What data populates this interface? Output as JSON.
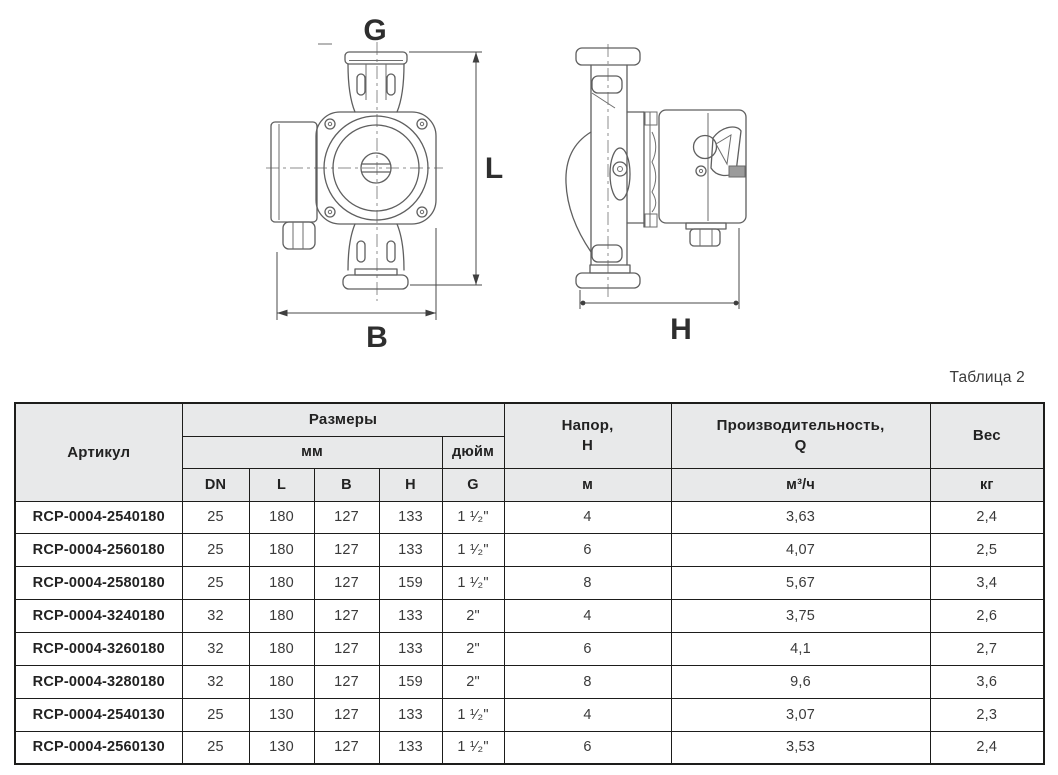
{
  "caption": "Таблица 2",
  "diagram": {
    "labels": {
      "g": "G",
      "l": "L",
      "b": "B",
      "h": "H"
    }
  },
  "colors": {
    "header_bg": "#e8e9ea",
    "table_border": "#1d1d1b",
    "drawing_line": "#5f5f5f"
  },
  "table": {
    "columns": [
      "article",
      "dn",
      "l_mm",
      "b_mm",
      "h_mm",
      "g_inch",
      "head_m",
      "q_m3h",
      "weight_kg"
    ],
    "header": {
      "article": "Артикул",
      "sizes": "Размеры",
      "mm": "мм",
      "inch": "дюйм",
      "dn": "DN",
      "l": "L",
      "b": "B",
      "h": "H",
      "g": "G",
      "head_line1": "Напор,",
      "head_line2": "Н",
      "head_unit": "м",
      "capacity_line1": "Производительность,",
      "capacity_line2": "Q",
      "capacity_unit": "м³/ч",
      "weight": "Вес",
      "weight_unit": "кг"
    },
    "rows": [
      [
        "RCP-0004-2540180",
        "25",
        "180",
        "127",
        "133",
        "1 ¹⁄₂\"",
        "4",
        "3,63",
        "2,4"
      ],
      [
        "RCP-0004-2560180",
        "25",
        "180",
        "127",
        "133",
        "1 ¹⁄₂\"",
        "6",
        "4,07",
        "2,5"
      ],
      [
        "RCP-0004-2580180",
        "25",
        "180",
        "127",
        "159",
        "1 ¹⁄₂\"",
        "8",
        "5,67",
        "3,4"
      ],
      [
        "RCP-0004-3240180",
        "32",
        "180",
        "127",
        "133",
        "2\"",
        "4",
        "3,75",
        "2,6"
      ],
      [
        "RCP-0004-3260180",
        "32",
        "180",
        "127",
        "133",
        "2\"",
        "6",
        "4,1",
        "2,7"
      ],
      [
        "RCP-0004-3280180",
        "32",
        "180",
        "127",
        "159",
        "2\"",
        "8",
        "9,6",
        "3,6"
      ],
      [
        "RCP-0004-2540130",
        "25",
        "130",
        "127",
        "133",
        "1 ¹⁄₂\"",
        "4",
        "3,07",
        "2,3"
      ],
      [
        "RCP-0004-2560130",
        "25",
        "130",
        "127",
        "133",
        "1 ¹⁄₂\"",
        "6",
        "3,53",
        "2,4"
      ]
    ]
  }
}
